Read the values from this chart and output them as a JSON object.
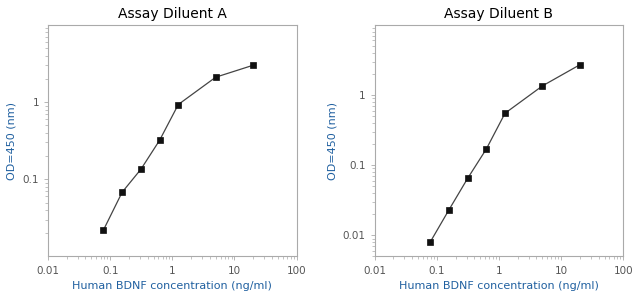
{
  "title_A": "Assay Diluent A",
  "title_B": "Assay Diluent B",
  "xlabel": "Human BDNF concentration (ng/ml)",
  "ylabel": "OD=450 (nm)",
  "x_A": [
    0.078,
    0.156,
    0.313,
    0.625,
    1.25,
    5.0,
    20.0
  ],
  "y_A": [
    0.022,
    0.068,
    0.135,
    0.32,
    0.93,
    2.1,
    3.0
  ],
  "x_B": [
    0.078,
    0.156,
    0.313,
    0.625,
    1.25,
    5.0,
    20.0
  ],
  "y_B": [
    0.008,
    0.023,
    0.065,
    0.17,
    0.55,
    1.35,
    2.7
  ],
  "xlim": [
    0.01,
    100
  ],
  "ylim_A": [
    0.01,
    10
  ],
  "ylim_B": [
    0.005,
    10
  ],
  "yticks_A": [
    0.1,
    1
  ],
  "yticks_B": [
    0.01,
    0.1,
    1
  ],
  "xticks": [
    0.01,
    0.1,
    1,
    10,
    100
  ],
  "line_color": "#444444",
  "marker_color": "#111111",
  "marker_style": "s",
  "marker_size": 4,
  "title_fontsize": 10,
  "label_fontsize": 8,
  "tick_fontsize": 7.5,
  "label_color": "#2060a0",
  "tick_color": "#555555",
  "background_color": "#ffffff",
  "spine_color": "#aaaaaa"
}
